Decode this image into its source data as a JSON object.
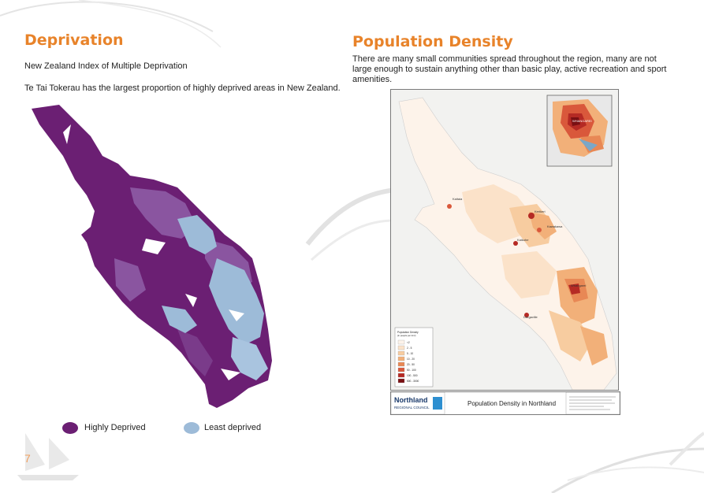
{
  "left": {
    "heading": "Deprivation",
    "subtitle": "New Zealand Index of Multiple Deprivation",
    "body": "Te Tai Tokerau has the largest proportion of highly deprived areas in New Zealand.",
    "legend": [
      {
        "label": "Highly Deprived",
        "color": "#6b1f73"
      },
      {
        "label": "Least deprived",
        "color": "#9dbbd8"
      }
    ],
    "colors": {
      "high": "#6b1f73",
      "mid": "#8a55a0",
      "low": "#9dbbd8"
    }
  },
  "right": {
    "heading": "Population Density",
    "body": "There are many small communities spread throughout the region, many are not large enough to sustain anything other than basic play, active recreation and sport amenities.",
    "map": {
      "inset_label": "WHANGAREI",
      "town_labels": [
        "Kaitaia",
        "Kaikohe",
        "Kerikeri",
        "Kawakawa",
        "Whangarei",
        "Dargaville"
      ],
      "legend_title": "Population Density",
      "legend_unit": "(in people per km²)",
      "legend_items": [
        "<2",
        "2 - 5",
        "5 - 10",
        "10 - 20",
        "20 - 50",
        "50 - 100",
        "100 - 500",
        "500 - 3000"
      ],
      "legend_colors": [
        "#fdf3ea",
        "#fbe2c9",
        "#f7ccA0",
        "#f2b079",
        "#e88855",
        "#d9583b",
        "#b52a24",
        "#7a1013"
      ]
    },
    "title_bar": {
      "logo_text": "Northland",
      "logo_sub": "REGIONAL COUNCIL",
      "title": "Population Density in Northland"
    }
  },
  "page_number": "7"
}
